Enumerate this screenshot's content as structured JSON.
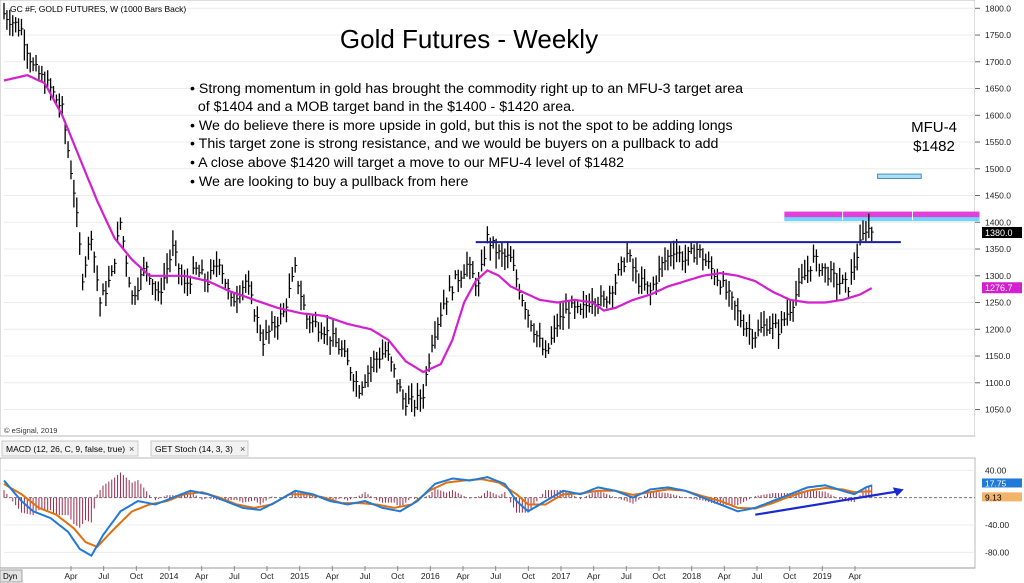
{
  "chart_data": {
    "type": "line",
    "symbol_header": "GC #F, GOLD FUTURES, W (1000 Bars Back)",
    "title": "Gold Futures - Weekly",
    "notes": [
      "• Strong momentum in gold has brought the commodity right up to an MFU-3 target area",
      "  of $1404 and a MOB target band in the $1400 - $1420 area.",
      "• We do believe there is more upside in gold, but this is not the spot to be adding longs",
      "• This target zone is strong resistance, and we would be buyers on a pullback to add",
      "• A close above $1420 will target a move to our MFU-4 level of $1482",
      "• We are looking to buy a pullback from here"
    ],
    "mfu4_label": "MFU-4",
    "mfu4_value": "$1482",
    "copyright": "© eSignal, 2019",
    "dyn_label": "Dyn",
    "price_axis": {
      "ticks": [
        1800,
        1750,
        1700,
        1650,
        1600,
        1550,
        1500,
        1450,
        1400,
        1350,
        1300,
        1250,
        1200,
        1150,
        1100,
        1050
      ],
      "tick_labels": [
        "1800.0",
        "1750.0",
        "1700.0",
        "1650.0",
        "1600.0",
        "1550.0",
        "1500.0",
        "1450.0",
        "1400.0",
        "1350.0",
        "1300.0",
        "1250.0",
        "1200.0",
        "1150.0",
        "1100.0",
        "1050.0"
      ],
      "range": [
        1008,
        1808
      ],
      "last_price_label": "1380.0",
      "last_price": 1380,
      "ma_label": "1276.7",
      "ma_value": 1276.7
    },
    "time_axis": {
      "labels": [
        "Apr",
        "Jul",
        "Oct",
        "2014",
        "Apr",
        "Jul",
        "Oct",
        "2015",
        "Apr",
        "Jul",
        "Oct",
        "2016",
        "Apr",
        "Jul",
        "Oct",
        "2017",
        "Apr",
        "Jul",
        "Oct",
        "2018",
        "Apr",
        "Jul",
        "Oct",
        "2019",
        "Apr"
      ],
      "range_weeks": [
        0,
        329
      ]
    },
    "resistance_line": {
      "value": 1363,
      "from_week": 162,
      "to_week": 308
    },
    "target_band": {
      "low": 1404,
      "high": 1420,
      "from_week": 268,
      "to_week": 335
    },
    "mfu4_box": {
      "low": 1482,
      "high": 1490,
      "from_week": 300,
      "to_week": 315
    },
    "price_series": {
      "name": "GC #F weekly high/low bars",
      "weeks_spacing": 3,
      "anchors": [
        [
          0,
          1790
        ],
        [
          6,
          1760
        ],
        [
          10,
          1690
        ],
        [
          16,
          1650
        ],
        [
          20,
          1610
        ],
        [
          24,
          1460
        ],
        [
          27,
          1300
        ],
        [
          30,
          1380
        ],
        [
          33,
          1250
        ],
        [
          37,
          1300
        ],
        [
          40,
          1400
        ],
        [
          44,
          1260
        ],
        [
          49,
          1320
        ],
        [
          53,
          1260
        ],
        [
          58,
          1350
        ],
        [
          62,
          1280
        ],
        [
          66,
          1310
        ],
        [
          70,
          1290
        ],
        [
          74,
          1330
        ],
        [
          78,
          1250
        ],
        [
          83,
          1290
        ],
        [
          89,
          1180
        ],
        [
          96,
          1230
        ],
        [
          100,
          1310
        ],
        [
          104,
          1220
        ],
        [
          110,
          1200
        ],
        [
          116,
          1160
        ],
        [
          122,
          1090
        ],
        [
          127,
          1140
        ],
        [
          131,
          1160
        ],
        [
          134,
          1120
        ],
        [
          137,
          1070
        ],
        [
          141,
          1060
        ],
        [
          144,
          1080
        ],
        [
          147,
          1180
        ],
        [
          151,
          1250
        ],
        [
          155,
          1290
        ],
        [
          159,
          1320
        ],
        [
          163,
          1280
        ],
        [
          166,
          1370
        ],
        [
          170,
          1340
        ],
        [
          174,
          1330
        ],
        [
          178,
          1260
        ],
        [
          182,
          1200
        ],
        [
          186,
          1150
        ],
        [
          190,
          1210
        ],
        [
          194,
          1240
        ],
        [
          198,
          1230
        ],
        [
          202,
          1260
        ],
        [
          206,
          1250
        ],
        [
          210,
          1290
        ],
        [
          214,
          1340
        ],
        [
          218,
          1290
        ],
        [
          222,
          1270
        ],
        [
          226,
          1320
        ],
        [
          230,
          1350
        ],
        [
          234,
          1330
        ],
        [
          238,
          1350
        ],
        [
          242,
          1320
        ],
        [
          246,
          1290
        ],
        [
          250,
          1250
        ],
        [
          254,
          1210
        ],
        [
          258,
          1190
        ],
        [
          262,
          1210
        ],
        [
          266,
          1200
        ],
        [
          270,
          1240
        ],
        [
          274,
          1290
        ],
        [
          278,
          1330
        ],
        [
          282,
          1310
        ],
        [
          286,
          1290
        ],
        [
          290,
          1280
        ],
        [
          293,
          1340
        ],
        [
          296,
          1390
        ],
        [
          298,
          1385
        ]
      ]
    },
    "ma_series": {
      "name": "moving average",
      "color": "#d21fcf",
      "anchors": [
        [
          0,
          1665
        ],
        [
          8,
          1675
        ],
        [
          14,
          1660
        ],
        [
          20,
          1600
        ],
        [
          26,
          1520
        ],
        [
          32,
          1440
        ],
        [
          38,
          1370
        ],
        [
          44,
          1330
        ],
        [
          50,
          1300
        ],
        [
          56,
          1300
        ],
        [
          62,
          1300
        ],
        [
          70,
          1290
        ],
        [
          78,
          1270
        ],
        [
          86,
          1255
        ],
        [
          94,
          1240
        ],
        [
          102,
          1230
        ],
        [
          110,
          1225
        ],
        [
          118,
          1210
        ],
        [
          126,
          1200
        ],
        [
          132,
          1180
        ],
        [
          138,
          1140
        ],
        [
          144,
          1120
        ],
        [
          150,
          1135
        ],
        [
          154,
          1180
        ],
        [
          158,
          1250
        ],
        [
          162,
          1290
        ],
        [
          166,
          1310
        ],
        [
          170,
          1300
        ],
        [
          174,
          1280
        ],
        [
          178,
          1270
        ],
        [
          184,
          1255
        ],
        [
          190,
          1250
        ],
        [
          196,
          1255
        ],
        [
          202,
          1250
        ],
        [
          206,
          1235
        ],
        [
          210,
          1240
        ],
        [
          216,
          1255
        ],
        [
          222,
          1265
        ],
        [
          228,
          1280
        ],
        [
          234,
          1290
        ],
        [
          240,
          1300
        ],
        [
          246,
          1305
        ],
        [
          252,
          1300
        ],
        [
          258,
          1290
        ],
        [
          264,
          1270
        ],
        [
          270,
          1255
        ],
        [
          276,
          1250
        ],
        [
          282,
          1250
        ],
        [
          288,
          1255
        ],
        [
          294,
          1265
        ],
        [
          298,
          1277
        ]
      ]
    },
    "indicator_tabs": [
      "MACD (12, 26, C, 9, false, true)",
      "GET Stoch (14, 3, 3)"
    ],
    "macd_axis": {
      "ticks": [
        40,
        0,
        -40,
        -80
      ],
      "tick_labels": [
        "40.00",
        "0.00",
        "-40.00",
        "-80.00"
      ],
      "range": [
        -100,
        55
      ],
      "value_label_1": "17.75",
      "value_label_2": "9.13"
    },
    "macd_series": {
      "name": "MACD",
      "color": "#1f7ad8",
      "anchors": [
        [
          0,
          25
        ],
        [
          6,
          -5
        ],
        [
          10,
          -20
        ],
        [
          16,
          -30
        ],
        [
          22,
          -50
        ],
        [
          26,
          -75
        ],
        [
          30,
          -85
        ],
        [
          34,
          -55
        ],
        [
          40,
          -20
        ],
        [
          46,
          -5
        ],
        [
          52,
          -10
        ],
        [
          58,
          0
        ],
        [
          64,
          10
        ],
        [
          70,
          5
        ],
        [
          76,
          -5
        ],
        [
          82,
          -15
        ],
        [
          88,
          -18
        ],
        [
          94,
          -5
        ],
        [
          100,
          10
        ],
        [
          106,
          5
        ],
        [
          112,
          -5
        ],
        [
          118,
          -10
        ],
        [
          124,
          -5
        ],
        [
          130,
          -15
        ],
        [
          136,
          -20
        ],
        [
          142,
          -5
        ],
        [
          148,
          20
        ],
        [
          154,
          28
        ],
        [
          160,
          25
        ],
        [
          166,
          30
        ],
        [
          172,
          20
        ],
        [
          176,
          -5
        ],
        [
          180,
          -20
        ],
        [
          186,
          -5
        ],
        [
          192,
          10
        ],
        [
          198,
          5
        ],
        [
          204,
          15
        ],
        [
          210,
          10
        ],
        [
          216,
          0
        ],
        [
          222,
          12
        ],
        [
          228,
          15
        ],
        [
          234,
          10
        ],
        [
          240,
          0
        ],
        [
          246,
          -10
        ],
        [
          252,
          -20
        ],
        [
          258,
          -15
        ],
        [
          264,
          -5
        ],
        [
          270,
          5
        ],
        [
          276,
          15
        ],
        [
          282,
          18
        ],
        [
          288,
          10
        ],
        [
          292,
          5
        ],
        [
          296,
          15
        ],
        [
          298,
          17.75
        ]
      ]
    },
    "signal_series": {
      "name": "Signal",
      "color": "#e07010",
      "anchors": [
        [
          0,
          20
        ],
        [
          6,
          5
        ],
        [
          12,
          -15
        ],
        [
          18,
          -25
        ],
        [
          24,
          -45
        ],
        [
          28,
          -65
        ],
        [
          32,
          -72
        ],
        [
          38,
          -45
        ],
        [
          44,
          -20
        ],
        [
          50,
          -10
        ],
        [
          56,
          -5
        ],
        [
          62,
          5
        ],
        [
          68,
          8
        ],
        [
          74,
          0
        ],
        [
          80,
          -10
        ],
        [
          86,
          -15
        ],
        [
          92,
          -10
        ],
        [
          98,
          5
        ],
        [
          104,
          5
        ],
        [
          110,
          0
        ],
        [
          116,
          -8
        ],
        [
          122,
          -8
        ],
        [
          128,
          -10
        ],
        [
          134,
          -15
        ],
        [
          140,
          -10
        ],
        [
          146,
          10
        ],
        [
          152,
          22
        ],
        [
          158,
          25
        ],
        [
          164,
          27
        ],
        [
          170,
          22
        ],
        [
          176,
          5
        ],
        [
          180,
          -10
        ],
        [
          186,
          -10
        ],
        [
          192,
          5
        ],
        [
          198,
          6
        ],
        [
          204,
          10
        ],
        [
          210,
          10
        ],
        [
          216,
          4
        ],
        [
          222,
          8
        ],
        [
          228,
          12
        ],
        [
          234,
          10
        ],
        [
          240,
          2
        ],
        [
          246,
          -5
        ],
        [
          252,
          -15
        ],
        [
          258,
          -16
        ],
        [
          264,
          -8
        ],
        [
          270,
          2
        ],
        [
          276,
          10
        ],
        [
          282,
          14
        ],
        [
          288,
          12
        ],
        [
          292,
          8
        ],
        [
          296,
          9
        ],
        [
          298,
          9.13
        ]
      ]
    },
    "macd_trend_arrow": {
      "from": [
        258,
        -25
      ],
      "to": [
        309,
        12
      ]
    },
    "colors": {
      "price_bars": "#000000",
      "ma": "#d21fcf",
      "resistance": "#1a1fa8",
      "target_band": "#e43fd8",
      "target_band_border": "#6fd6ff",
      "mfu4_box": "#aee0f6",
      "macd": "#1f7ad8",
      "signal": "#e07010",
      "histogram": "#9c2a4a",
      "arrow": "#1a2ad0",
      "last_price_bg": "#000000",
      "ma_label_bg": "#d21fcf"
    }
  }
}
